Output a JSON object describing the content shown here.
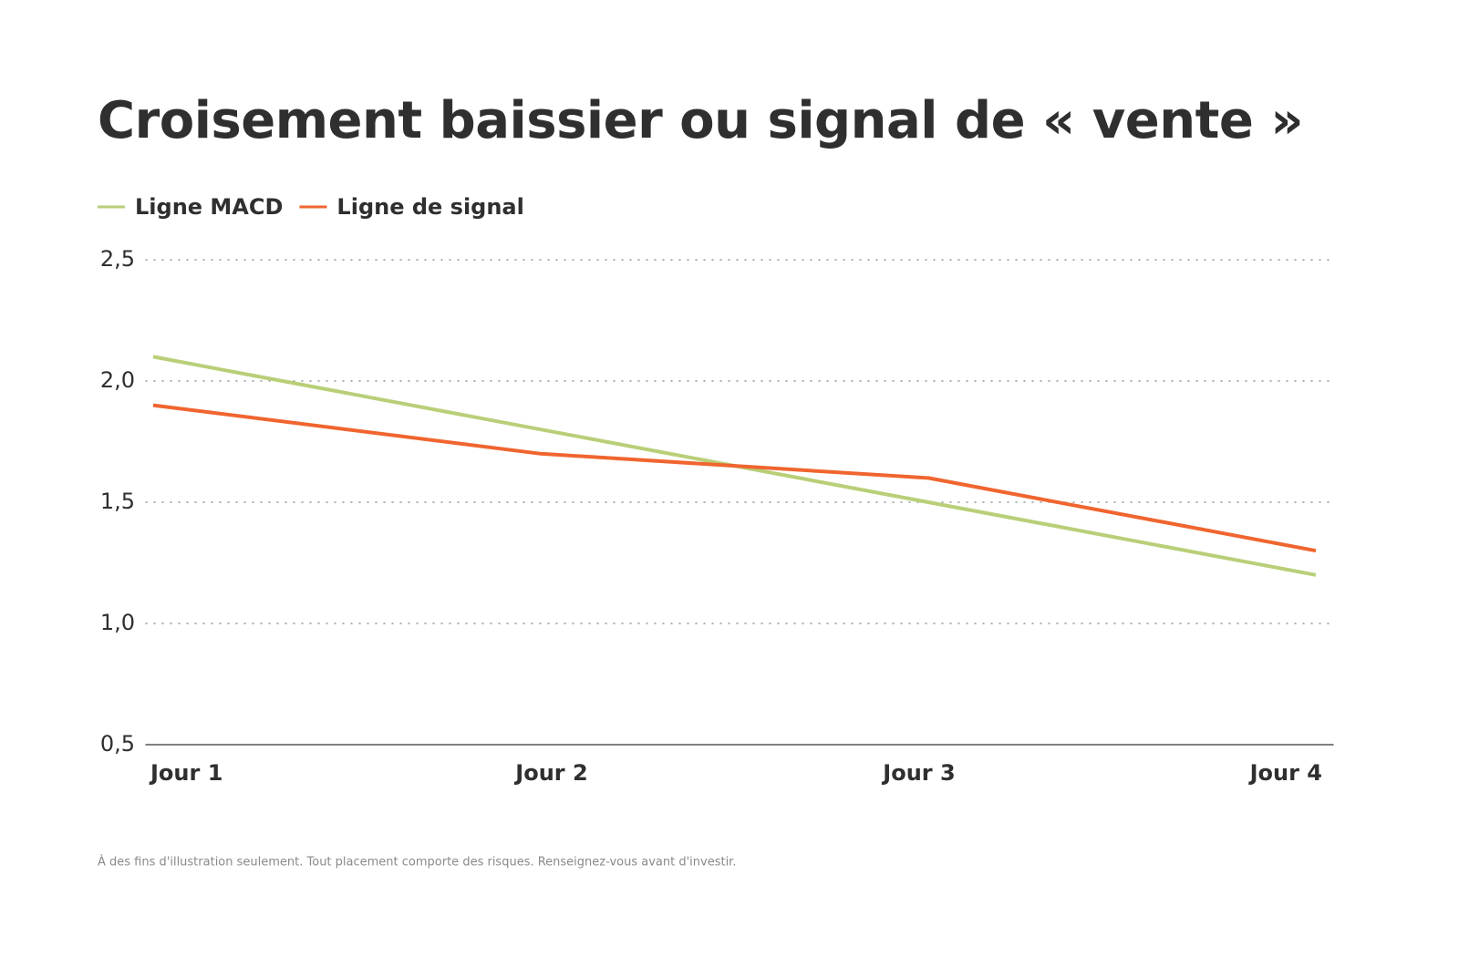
{
  "chart_data": {
    "type": "line",
    "title": "Croisement baissier ou signal de « vente »",
    "categories": [
      "Jour 1",
      "Jour 2",
      "Jour 3",
      "Jour 4"
    ],
    "series": [
      {
        "name": "Ligne MACD",
        "color": "#b8cf78",
        "values": [
          2.1,
          1.8,
          1.5,
          1.2
        ]
      },
      {
        "name": "Ligne de signal",
        "color": "#f0652f",
        "values": [
          1.9,
          1.7,
          1.6,
          1.3
        ]
      }
    ],
    "ylim": [
      0.5,
      2.5
    ],
    "yticks": [
      {
        "value": 0.5,
        "label": "0,5"
      },
      {
        "value": 1.0,
        "label": "1,0"
      },
      {
        "value": 1.5,
        "label": "1,5"
      },
      {
        "value": 2.0,
        "label": "2,0"
      },
      {
        "value": 2.5,
        "label": "2,5"
      }
    ],
    "grid": true,
    "legend": "top-left",
    "note": "À des fins d'illustration seulement. Tout placement comporte des risques. Renseignez-vous avant d'investir."
  }
}
